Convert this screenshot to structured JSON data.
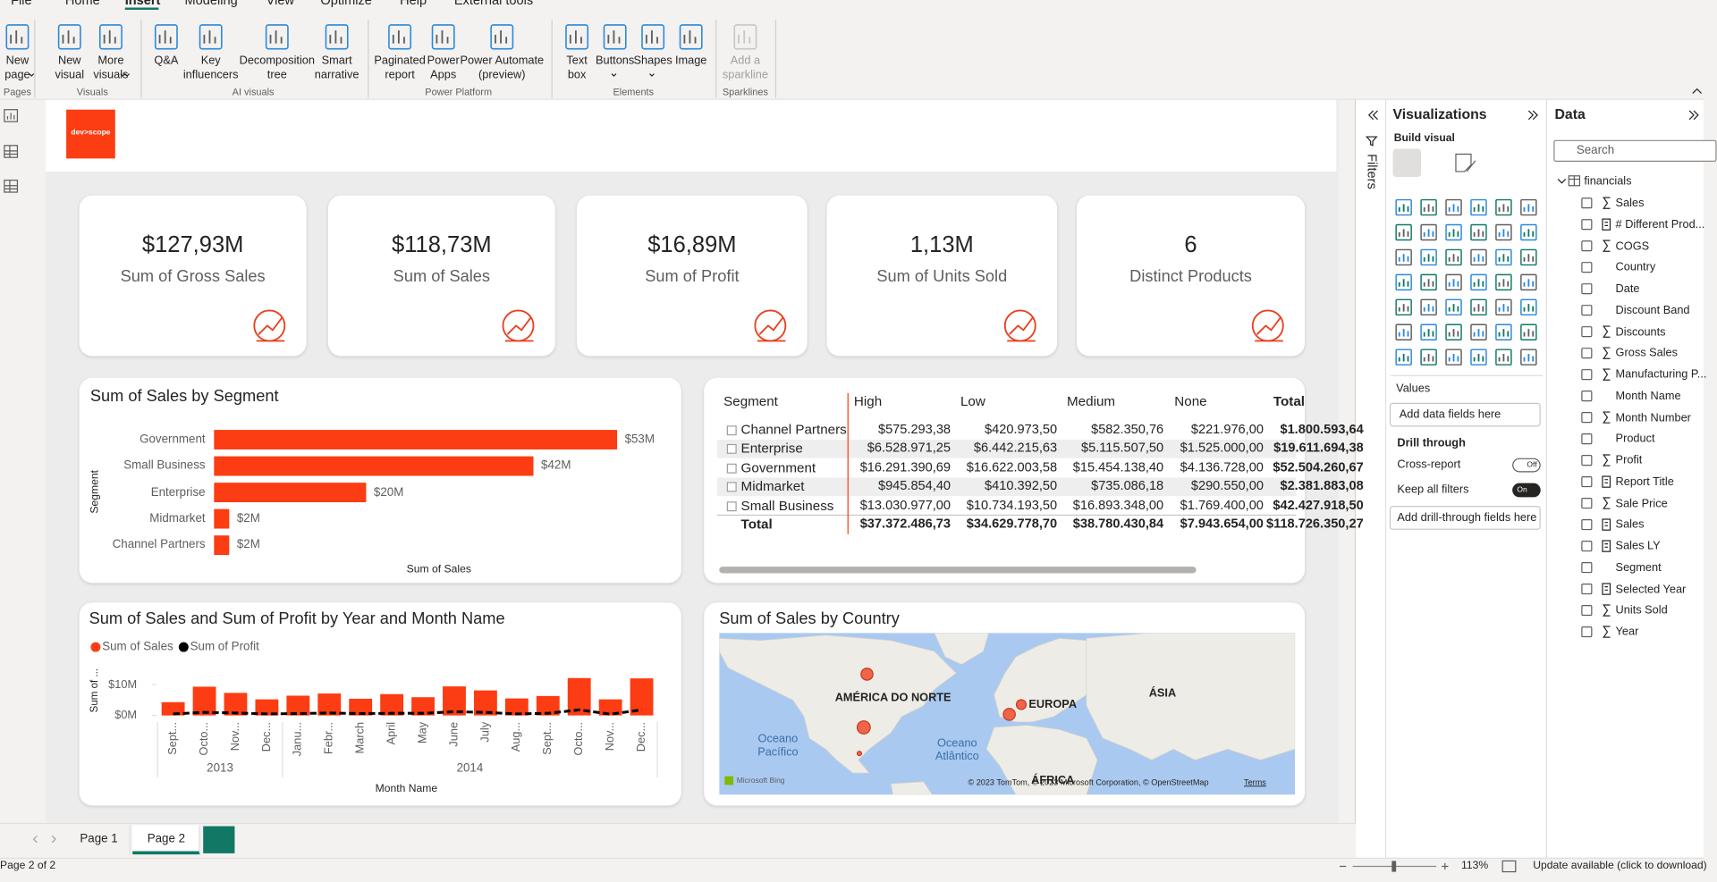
{
  "ribbon": {
    "tabs": [
      "File",
      "Home",
      "Insert",
      "Modeling",
      "View",
      "Optimize",
      "Help",
      "External tools"
    ],
    "active_tab": 2,
    "groups": [
      {
        "name": "Pages",
        "buttons": [
          [
            "New",
            "page"
          ]
        ]
      },
      {
        "name": "Visuals",
        "buttons": [
          [
            "New",
            "visual"
          ],
          [
            "More",
            "visuals"
          ]
        ]
      },
      {
        "name": "AI visuals",
        "buttons": [
          [
            "Q&A"
          ],
          [
            "Key",
            "influencers"
          ],
          [
            "Decomposition",
            "tree"
          ],
          [
            "Smart",
            "narrative"
          ]
        ]
      },
      {
        "name": "Power Platform",
        "buttons": [
          [
            "Paginated",
            "report"
          ],
          [
            "Power",
            "Apps"
          ],
          [
            "Power Automate",
            "(preview)"
          ]
        ]
      },
      {
        "name": "Elements",
        "buttons": [
          [
            "Text",
            "box"
          ],
          [
            "Buttons"
          ],
          [
            "Shapes"
          ],
          [
            "Image"
          ]
        ]
      },
      {
        "name": "Sparklines",
        "buttons": [
          [
            "Add a",
            "sparkline"
          ]
        ]
      }
    ]
  },
  "logo": "dev>scope",
  "kpis": [
    {
      "value": "$127,93M",
      "label": "Sum of Gross Sales"
    },
    {
      "value": "$118,73M",
      "label": "Sum of  Sales"
    },
    {
      "value": "$16,89M",
      "label": "Sum of Profit"
    },
    {
      "value": "1,13M",
      "label": "Sum of Units Sold"
    },
    {
      "value": "6",
      "label": "Distinct Products"
    }
  ],
  "chart_data": [
    {
      "type": "bar",
      "title": "Sum of Sales by Segment",
      "y_label": "Segment",
      "x_label": "Sum of Sales",
      "categories": [
        "Government",
        "Small Business",
        "Enterprise",
        "Midmarket",
        "Channel Partners"
      ],
      "values": [
        53,
        42,
        20,
        2,
        2
      ],
      "value_labels": [
        "$53M",
        "$42M",
        "$20M",
        "$2M",
        "$2M"
      ],
      "color": "#fc3c12",
      "xlim": [
        0,
        54
      ]
    },
    {
      "type": "combo",
      "title": "Sum of Sales and Sum of Profit by Year and Month Name",
      "y_label": "Sum of ...",
      "x_label": "Month Name",
      "year_groups": [
        {
          "label": "2013",
          "categories": [
            "Sept...",
            "Octo...",
            "Nov...",
            "Dec..."
          ]
        },
        {
          "label": "2014",
          "categories": [
            "Janu...",
            "Febr...",
            "March",
            "April",
            "May",
            "June",
            "July",
            "Aug...",
            "Sept...",
            "Octo...",
            "Nov...",
            "Dec..."
          ]
        }
      ],
      "series": [
        {
          "name": "Sum of  Sales",
          "color": "#fc3c12",
          "kind": "bar",
          "values": [
            4.3,
            9.3,
            7.3,
            5.2,
            6.4,
            7.1,
            5.4,
            6.9,
            5.9,
            9.4,
            8.1,
            5.5,
            6.3,
            12.1,
            5.2,
            12.0
          ]
        },
        {
          "name": "Sum of Profit",
          "color": "#000000",
          "kind": "line",
          "dashed": true,
          "values": [
            0.5,
            1.0,
            0.8,
            0.5,
            0.6,
            0.8,
            0.6,
            0.7,
            0.7,
            1.2,
            1.0,
            0.5,
            0.7,
            1.8,
            0.4,
            1.8
          ]
        }
      ],
      "ylim": [
        0,
        13
      ],
      "yticks": [
        {
          "value": 0,
          "label": "$0M"
        },
        {
          "value": 10,
          "label": "$10M"
        }
      ]
    }
  ],
  "matrix": {
    "columns": [
      "Segment",
      "High",
      "Low",
      "Medium",
      "None",
      "Total"
    ],
    "rows": [
      [
        "Channel Partners",
        "$575.293,38",
        "$420.973,50",
        "$582.350,76",
        "$221.976,00",
        "$1.800.593,64"
      ],
      [
        "Enterprise",
        "$6.528.971,25",
        "$6.442.215,63",
        "$5.115.507,50",
        "$1.525.000,00",
        "$19.611.694,38"
      ],
      [
        "Government",
        "$16.291.390,69",
        "$16.622.003,58",
        "$15.454.138,40",
        "$4.136.728,00",
        "$52.504.260,67"
      ],
      [
        "Midmarket",
        "$945.854,40",
        "$410.392,50",
        "$735.086,18",
        "$290.550,00",
        "$2.381.883,08"
      ],
      [
        "Small Business",
        "$13.030.977,00",
        "$10.734.193,50",
        "$16.893.348,00",
        "$1.769.400,00",
        "$42.427.918,50"
      ]
    ],
    "total": [
      "Total",
      "$37.372.486,73",
      "$34.629.778,70",
      "$38.780.430,84",
      "$7.943.654,00",
      "$118.726.350,27"
    ]
  },
  "map": {
    "title": "Sum of Sales by Country",
    "labels": [
      "AMÉRICA DO NORTE",
      "EUROPA",
      "ÁSIA",
      "Oceano",
      "Pacífico",
      "Oceano",
      "Atlântico",
      "ÁFRICA"
    ],
    "credits": "Microsoft Bing",
    "attribution": "© 2023 TomTom, © 2023 Microsoft Corporation, © OpenStreetMap",
    "terms": "Terms"
  },
  "filters": {
    "title": "Filters"
  },
  "visualizations": {
    "title": "Visualizations",
    "build": "Build visual",
    "values": "Values",
    "values_placeholder": "Add data fields here",
    "drill": "Drill through",
    "cross_report": "Cross-report",
    "cross_state": "Off",
    "keep_filters": "Keep all filters",
    "keep_state": "On",
    "drill_placeholder": "Add drill-through fields here"
  },
  "data_pane": {
    "title": "Data",
    "search": "Search",
    "table": "financials",
    "fields": [
      {
        "name": "Sales",
        "kind": "sum"
      },
      {
        "name": "# Different Prod...",
        "kind": "calc"
      },
      {
        "name": "COGS",
        "kind": "sum"
      },
      {
        "name": "Country",
        "kind": "plain"
      },
      {
        "name": "Date",
        "kind": "plain"
      },
      {
        "name": "Discount Band",
        "kind": "plain"
      },
      {
        "name": "Discounts",
        "kind": "sum"
      },
      {
        "name": "Gross Sales",
        "kind": "sum"
      },
      {
        "name": "Manufacturing P...",
        "kind": "sum"
      },
      {
        "name": "Month Name",
        "kind": "plain"
      },
      {
        "name": "Month Number",
        "kind": "sum"
      },
      {
        "name": "Product",
        "kind": "plain"
      },
      {
        "name": "Profit",
        "kind": "sum"
      },
      {
        "name": "Report Title",
        "kind": "calc"
      },
      {
        "name": "Sale Price",
        "kind": "sum"
      },
      {
        "name": "Sales",
        "kind": "calc"
      },
      {
        "name": "Sales LY",
        "kind": "calc"
      },
      {
        "name": "Segment",
        "kind": "plain"
      },
      {
        "name": "Selected Year",
        "kind": "calc"
      },
      {
        "name": "Units Sold",
        "kind": "sum"
      },
      {
        "name": "Year",
        "kind": "sum"
      }
    ]
  },
  "footer": {
    "pages": [
      "Page 1",
      "Page 2"
    ],
    "active_page": 1,
    "status": "Page 2 of 2",
    "zoom": "113%",
    "update": "Update available (click to download)"
  }
}
